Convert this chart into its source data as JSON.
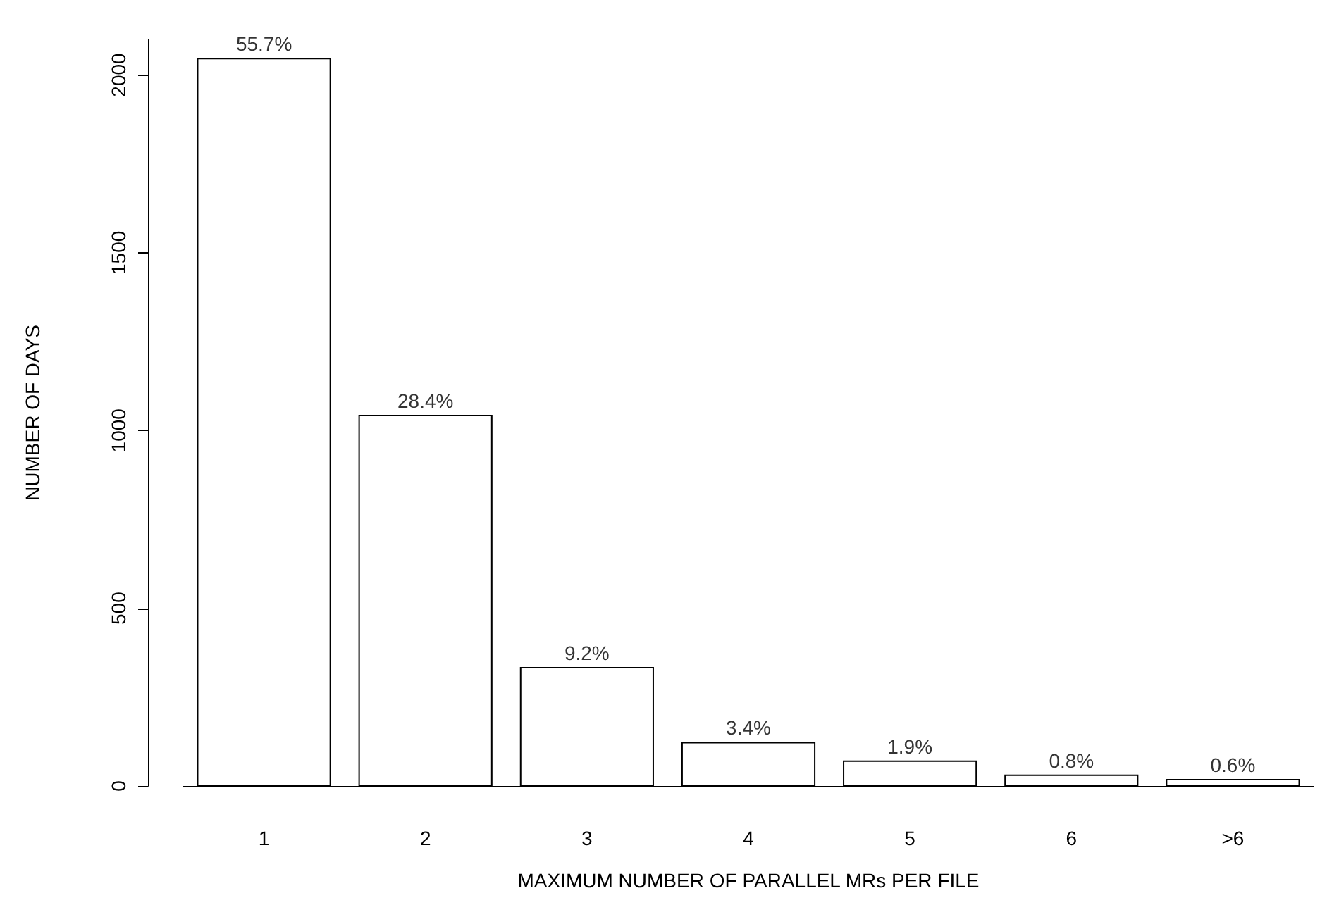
{
  "chart_data": {
    "type": "bar",
    "xlabel": "MAXIMUM NUMBER OF PARALLEL MRs PER FILE",
    "ylabel": "NUMBER OF DAYS",
    "categories": [
      "1",
      "2",
      "3",
      "4",
      "5",
      "6",
      ">6"
    ],
    "values": [
      2048,
      1044,
      335,
      124,
      72,
      32,
      20
    ],
    "annotations": [
      {
        "text": "55.7%",
        "x": "1",
        "y": 2048
      },
      {
        "text": "28.4%",
        "x": "2",
        "y": 1044
      },
      {
        "text": "9.2%",
        "x": "3",
        "y": 335
      },
      {
        "text": "3.4%",
        "x": "4",
        "y": 124
      },
      {
        "text": "1.9%",
        "x": "5",
        "y": 72
      },
      {
        "text": "0.8%",
        "x": "6",
        "y": 32
      },
      {
        "text": "0.6%",
        "x": ">6",
        "y": 20
      }
    ],
    "color": "#ffffff",
    "ylim": [
      0,
      2100
    ],
    "yticks": [
      0,
      500,
      1000,
      1500,
      2000
    ],
    "grid": false
  }
}
